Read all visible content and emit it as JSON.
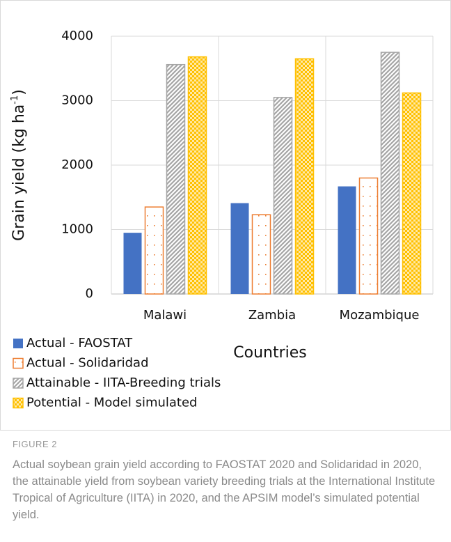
{
  "chart_data": {
    "type": "bar",
    "ylabel": {
      "text": "Grain yield (kg ha",
      "superscript": "-1",
      "end": ")"
    },
    "xlabel": "Countries",
    "categories": [
      "Malawi",
      "Zambia",
      "Mozambique"
    ],
    "series": [
      {
        "name": "Actual - FAOSTAT",
        "color": "#4472c4",
        "pattern": "solid",
        "values": [
          950,
          1410,
          1670
        ]
      },
      {
        "name": "Actual - Solidaridad",
        "color": "#ed7d31",
        "pattern": "dots",
        "values": [
          1350,
          1230,
          1800
        ]
      },
      {
        "name": "Attainable - IITA-Breeding trials",
        "color": "#a5a5a5",
        "pattern": "stripes",
        "values": [
          3560,
          3050,
          3750
        ]
      },
      {
        "name": "Potential - Model simulated",
        "color": "#ffc000",
        "pattern": "checker",
        "values": [
          3680,
          3650,
          3120
        ]
      }
    ],
    "ylim": [
      0,
      4000
    ],
    "yticks": [
      0,
      1000,
      2000,
      3000,
      4000
    ],
    "legend": "bottom-left"
  },
  "caption": {
    "label": "FIGURE 2",
    "text": "Actual soybean grain yield according to FAOSTAT 2020 and Solidaridad in 2020, the attainable yield from soybean variety breeding trials at the International Institute Tropical of Agriculture (IITA) in 2020, and the APSIM model’s simulated potential yield."
  }
}
